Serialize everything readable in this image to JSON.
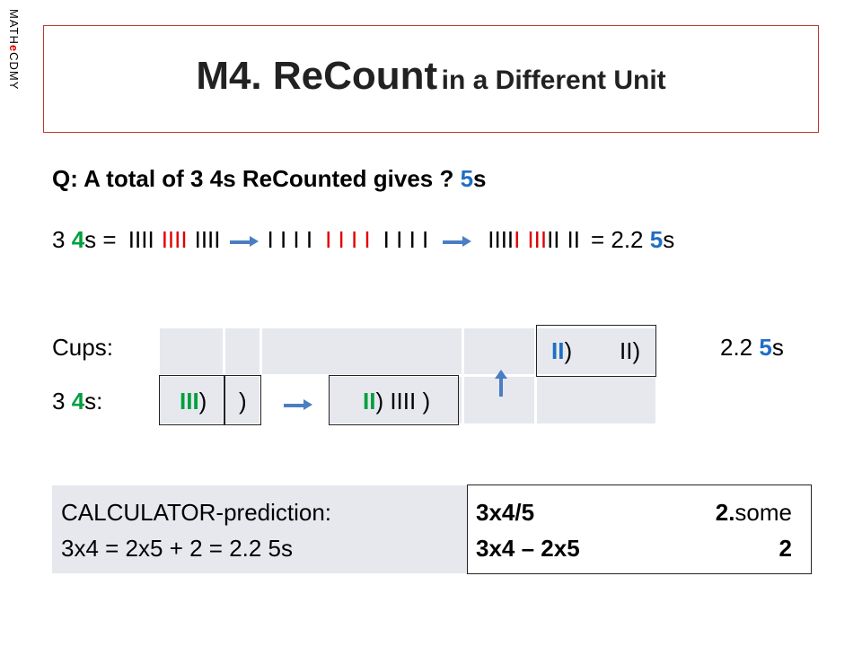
{
  "brand": [
    "MATH",
    "e",
    "CDMY"
  ],
  "title": {
    "main": "M4. ReCount",
    "sub": "in a Different Unit"
  },
  "question": [
    "Q: A total of 3 4s ReCounted gives ? ",
    "5",
    "s"
  ],
  "recount": {
    "start": [
      "3 ",
      "4",
      "s = "
    ],
    "groups4": [
      "IIII",
      "IIII",
      "IIII"
    ],
    "singles": [
      "I I I I",
      "I I I I",
      "I I I I"
    ],
    "groups5": [
      "IIII",
      "I",
      "III",
      "II",
      "II"
    ],
    "result": [
      "= 2.2 ",
      "5",
      "s"
    ]
  },
  "cups": {
    "label": "Cups:",
    "cell1": "II",
    "cell1b": ")",
    "cell2": "II)",
    "result": [
      "2.2 ",
      "5",
      "s"
    ]
  },
  "fours": {
    "label": [
      "3 ",
      "4",
      "s:"
    ],
    "cell1": "III",
    "cell1b": ")",
    "cell2": ")",
    "cell3": "II",
    "cell3b": ") IIII )"
  },
  "calculator": {
    "title": "CALCULATOR-prediction:",
    "equation": "3x4 = 2x5 + 2 = 2.2 5s",
    "rows": [
      [
        "3x4/5",
        "2.",
        "some"
      ],
      [
        "3x4 – 2x5",
        "2"
      ]
    ]
  }
}
